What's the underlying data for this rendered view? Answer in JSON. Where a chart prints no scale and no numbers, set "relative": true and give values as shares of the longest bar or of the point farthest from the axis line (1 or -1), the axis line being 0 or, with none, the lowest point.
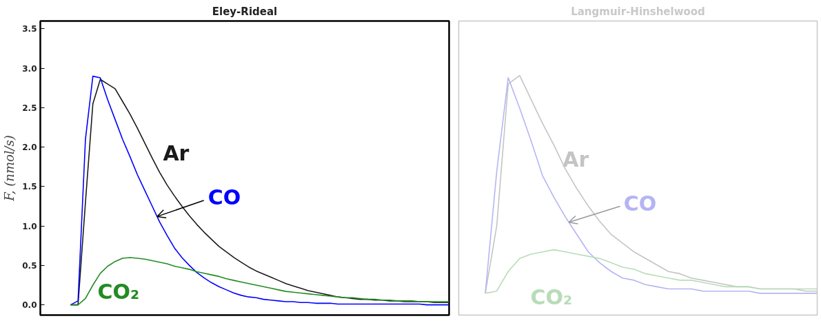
{
  "chart_data": [
    {
      "type": "line",
      "title": "Eley-Rideal",
      "ylabel": "F, (nmol/s)",
      "tick_labels": "y",
      "categories": [
        null,
        null,
        null,
        null,
        null,
        null,
        null,
        null,
        null,
        null,
        null,
        null,
        null,
        null,
        null,
        null,
        null,
        null,
        null,
        null,
        null,
        null,
        null,
        null,
        null,
        null,
        null,
        null,
        null,
        null,
        null,
        null,
        null,
        null,
        null,
        null,
        null,
        null,
        null,
        null,
        null,
        null,
        null,
        null,
        null,
        null,
        null,
        null,
        null,
        null,
        null,
        null
      ],
      "ylim": [
        -0.13,
        3.6
      ],
      "yticks": [
        {
          "value": 0,
          "label": "0.0"
        },
        0.5,
        {
          "value": 1,
          "label": "1.0"
        },
        1.5,
        {
          "value": 2,
          "label": "2.0"
        },
        2.5,
        {
          "value": 3,
          "label": "3.0"
        },
        3.5
      ],
      "series": [
        {
          "name": "Ar",
          "color": "#1a1a1a",
          "values": [
            0,
            0,
            1.3,
            2.55,
            2.86,
            2.8,
            2.74,
            2.58,
            2.42,
            2.24,
            2.05,
            1.86,
            1.68,
            1.52,
            1.38,
            1.25,
            1.13,
            1.02,
            0.92,
            0.83,
            0.74,
            0.67,
            0.6,
            0.54,
            0.48,
            0.43,
            0.39,
            0.35,
            0.31,
            0.27,
            0.24,
            0.21,
            0.18,
            0.16,
            0.14,
            0.12,
            0.1,
            0.09,
            0.08,
            0.07,
            0.07,
            0.06,
            0.06,
            0.05,
            0.05,
            0.04,
            0.04,
            0.04,
            0.04,
            0.03,
            0.03,
            0.03
          ]
        },
        {
          "name": "CO",
          "color": "#0000ff",
          "values": [
            0,
            0.05,
            2.1,
            2.9,
            2.88,
            2.6,
            2.35,
            2.1,
            1.88,
            1.65,
            1.45,
            1.25,
            1.05,
            0.88,
            0.72,
            0.6,
            0.5,
            0.41,
            0.34,
            0.28,
            0.23,
            0.19,
            0.15,
            0.12,
            0.1,
            0.09,
            0.07,
            0.06,
            0.05,
            0.04,
            0.04,
            0.03,
            0.03,
            0.02,
            0.02,
            0.02,
            0.01,
            0.01,
            0.01,
            0.01,
            0.01,
            0.01,
            0.01,
            0.01,
            0.01,
            0.01,
            0.01,
            0.01,
            0,
            0,
            0,
            0
          ]
        },
        {
          "name": "CO₂",
          "color": "#228b22",
          "values": [
            0,
            0,
            0.08,
            0.25,
            0.4,
            0.49,
            0.55,
            0.59,
            0.6,
            0.59,
            0.58,
            0.56,
            0.54,
            0.52,
            0.49,
            0.47,
            0.45,
            0.42,
            0.4,
            0.38,
            0.36,
            0.33,
            0.31,
            0.29,
            0.27,
            0.25,
            0.23,
            0.21,
            0.19,
            0.17,
            0.16,
            0.15,
            0.14,
            0.13,
            0.12,
            0.11,
            0.1,
            0.09,
            0.09,
            0.08,
            0.07,
            0.07,
            0.06,
            0.06,
            0.05,
            0.05,
            0.05,
            0.04,
            0.04,
            0.04,
            0.04,
            0.04
          ]
        }
      ]
    },
    {
      "type": "line",
      "title": "Langmuir-Hinshelwood",
      "relative": true,
      "tick_labels": false,
      "categories": [
        null,
        null,
        null,
        null,
        null,
        null,
        null,
        null,
        null,
        null,
        null,
        null,
        null,
        null,
        null,
        null,
        null,
        null,
        null,
        null,
        null,
        null,
        null,
        null,
        null,
        null,
        null,
        null,
        null,
        null
      ],
      "series": [
        {
          "name": "Ar",
          "color": "#c4c4c4",
          "values": [
            0,
            0.31,
            0.96,
            1,
            0.89,
            0.78,
            0.68,
            0.57,
            0.48,
            0.4,
            0.33,
            0.27,
            0.23,
            0.19,
            0.16,
            0.13,
            0.1,
            0.09,
            0.07,
            0.06,
            0.05,
            0.04,
            0.03,
            0.03,
            0.02,
            0.02,
            0.02,
            0.02,
            0.01,
            0.01
          ]
        },
        {
          "name": "CO",
          "color": "#b4b4f4",
          "values": [
            0,
            0.56,
            0.99,
            0.85,
            0.7,
            0.54,
            0.44,
            0.35,
            0.27,
            0.19,
            0.14,
            0.1,
            0.07,
            0.06,
            0.04,
            0.03,
            0.02,
            0.02,
            0.02,
            0.01,
            0.01,
            0.01,
            0.01,
            0.01,
            0,
            0,
            0,
            0,
            0,
            0
          ]
        },
        {
          "name": "CO₂",
          "color": "#b8dcb8",
          "values": [
            0,
            0.01,
            0.1,
            0.16,
            0.18,
            0.19,
            0.2,
            0.19,
            0.18,
            0.17,
            0.16,
            0.14,
            0.12,
            0.11,
            0.09,
            0.08,
            0.07,
            0.06,
            0.06,
            0.05,
            0.04,
            0.03,
            0.03,
            0.03,
            0.02,
            0.02,
            0.02,
            0.02,
            0.02,
            0.02
          ]
        }
      ]
    }
  ]
}
